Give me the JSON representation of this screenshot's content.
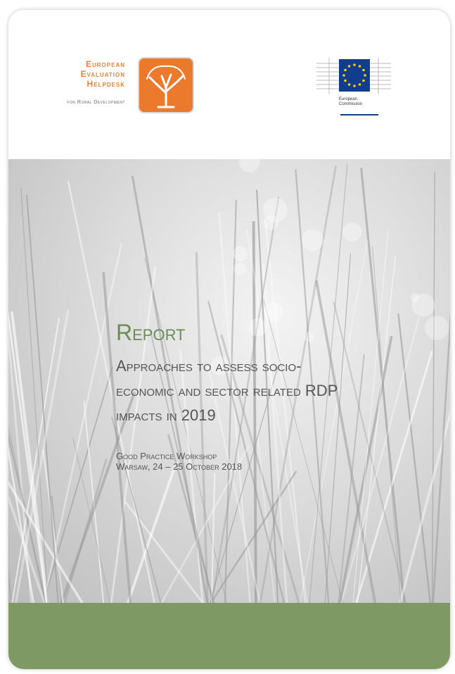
{
  "header": {
    "helpdesk_logo": {
      "lines": [
        "European",
        "Evaluation",
        "Helpdesk"
      ],
      "tagline": "for Rural Development"
    },
    "commission_logo": {
      "lines": [
        "European",
        "Commission"
      ]
    }
  },
  "cover": {
    "title": "Report",
    "subtitle_lines": [
      "Approaches to assess socio-",
      "economic and sector related RDP",
      "impacts in 2019"
    ],
    "event": "Good Practice Workshop",
    "place_date": "Warsaw, 24 – 25 October 2018"
  }
}
